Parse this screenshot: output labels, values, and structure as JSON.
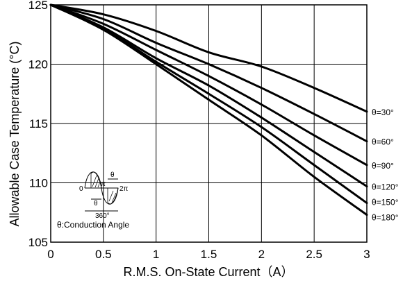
{
  "chart_data": {
    "type": "line",
    "title": "",
    "xlabel": "R.M.S. On-State Current（A）",
    "ylabel": "Allowable Case Temperature (°C)",
    "xlim": [
      0,
      3
    ],
    "ylim": [
      105,
      125
    ],
    "xticks": [
      "0",
      "0.5",
      "1",
      "1.5",
      "2",
      "2.5",
      "3"
    ],
    "yticks": [
      "105",
      "110",
      "115",
      "120",
      "125"
    ],
    "grid": true,
    "series": [
      {
        "name": "θ=30°",
        "x": [
          0,
          0.5,
          1,
          1.5,
          2,
          2.5,
          3
        ],
        "y": [
          125,
          124.2,
          122.8,
          121.0,
          119.8,
          118.0,
          116.0
        ]
      },
      {
        "name": "θ=60°",
        "x": [
          0,
          0.5,
          1,
          1.5,
          2,
          2.5,
          3
        ],
        "y": [
          125,
          123.8,
          121.8,
          120.0,
          118.0,
          115.8,
          113.5
        ]
      },
      {
        "name": "θ=90°",
        "x": [
          0,
          0.5,
          1,
          1.5,
          2,
          2.5,
          3
        ],
        "y": [
          125,
          123.4,
          121.2,
          119.0,
          116.6,
          114.0,
          111.5
        ]
      },
      {
        "name": "θ=120°",
        "x": [
          0,
          0.5,
          1,
          1.5,
          2,
          2.5,
          3
        ],
        "y": [
          125,
          123.1,
          120.5,
          118.2,
          115.5,
          112.6,
          109.7
        ]
      },
      {
        "name": "θ=150°",
        "x": [
          0,
          0.5,
          1,
          1.5,
          2,
          2.5,
          3
        ],
        "y": [
          125,
          123.0,
          120.2,
          117.5,
          114.7,
          111.5,
          108.3
        ]
      },
      {
        "name": "θ=180°",
        "x": [
          0,
          0.5,
          1,
          1.5,
          2,
          2.5,
          3
        ],
        "y": [
          125,
          122.9,
          120.0,
          117.0,
          114.0,
          110.5,
          107.3
        ]
      }
    ],
    "inset": {
      "zero_label": "0",
      "pi_label": "π",
      "two_pi_label": "2π",
      "theta_label": "θ",
      "period_label": "360°",
      "caption": "θ:Conduction Angle"
    },
    "colors": {
      "line": "#000000",
      "grid": "#000000",
      "background": "#ffffff"
    }
  }
}
